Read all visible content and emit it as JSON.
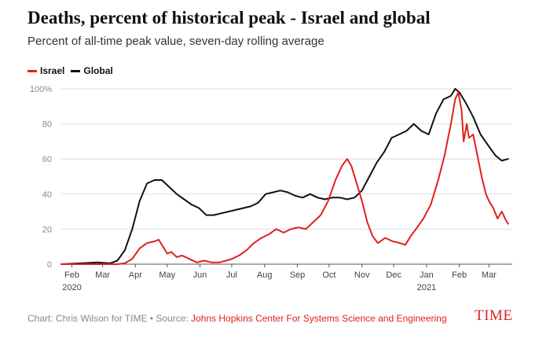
{
  "title": "Deaths, percent of historical peak - Israel and global",
  "subtitle": "Percent of all-time peak value, seven-day rolling average",
  "footer": {
    "credit": "Chart: Chris Wilson for TIME • Source: ",
    "source": "Johns Hopkins Center For Systems Science and Engineering"
  },
  "logo": "TIME",
  "colors": {
    "israel": "#e02020",
    "global": "#111111",
    "grid": "#dddddd",
    "axis_text": "#888888"
  },
  "chart_data": {
    "type": "line",
    "title": "Deaths, percent of historical peak - Israel and global",
    "subtitle": "Percent of all-time peak value, seven-day rolling average",
    "xlabel": "",
    "ylabel": "",
    "ylim": [
      0,
      100
    ],
    "xlim": [
      "2020-01-22",
      "2021-03-20"
    ],
    "grid": true,
    "legend": "top-left",
    "y_ticks": [
      {
        "value": 0,
        "label": "0"
      },
      {
        "value": 20,
        "label": "20"
      },
      {
        "value": 40,
        "label": "40"
      },
      {
        "value": 60,
        "label": "60"
      },
      {
        "value": 80,
        "label": "80"
      },
      {
        "value": 100,
        "label": "100%"
      }
    ],
    "x_ticks": [
      {
        "date": "2020-02-01",
        "label": "Feb",
        "year": "2020"
      },
      {
        "date": "2020-03-01",
        "label": "Mar",
        "year": ""
      },
      {
        "date": "2020-04-01",
        "label": "Apr",
        "year": ""
      },
      {
        "date": "2020-05-01",
        "label": "May",
        "year": ""
      },
      {
        "date": "2020-06-01",
        "label": "Jun",
        "year": ""
      },
      {
        "date": "2020-07-01",
        "label": "Jul",
        "year": ""
      },
      {
        "date": "2020-08-01",
        "label": "Aug",
        "year": ""
      },
      {
        "date": "2020-09-01",
        "label": "Sep",
        "year": ""
      },
      {
        "date": "2020-10-01",
        "label": "Oct",
        "year": ""
      },
      {
        "date": "2020-11-01",
        "label": "Nov",
        "year": ""
      },
      {
        "date": "2020-12-01",
        "label": "Dec",
        "year": ""
      },
      {
        "date": "2021-01-01",
        "label": "Jan",
        "year": "2021"
      },
      {
        "date": "2021-02-01",
        "label": "Feb",
        "year": ""
      },
      {
        "date": "2021-03-01",
        "label": "Mar",
        "year": ""
      }
    ],
    "series": [
      {
        "name": "Israel",
        "color": "#e02020",
        "points": [
          [
            "2020-01-22",
            0
          ],
          [
            "2020-03-15",
            0
          ],
          [
            "2020-03-22",
            0.5
          ],
          [
            "2020-03-29",
            3
          ],
          [
            "2020-04-05",
            9
          ],
          [
            "2020-04-12",
            12
          ],
          [
            "2020-04-19",
            13
          ],
          [
            "2020-04-23",
            14
          ],
          [
            "2020-04-27",
            10
          ],
          [
            "2020-05-01",
            6
          ],
          [
            "2020-05-05",
            7
          ],
          [
            "2020-05-10",
            4
          ],
          [
            "2020-05-15",
            5
          ],
          [
            "2020-05-22",
            3
          ],
          [
            "2020-05-29",
            1
          ],
          [
            "2020-06-05",
            2
          ],
          [
            "2020-06-12",
            1
          ],
          [
            "2020-06-19",
            1
          ],
          [
            "2020-06-26",
            2
          ],
          [
            "2020-07-01",
            3
          ],
          [
            "2020-07-08",
            5
          ],
          [
            "2020-07-15",
            8
          ],
          [
            "2020-07-22",
            12
          ],
          [
            "2020-07-29",
            15
          ],
          [
            "2020-08-05",
            17
          ],
          [
            "2020-08-12",
            20
          ],
          [
            "2020-08-19",
            18
          ],
          [
            "2020-08-26",
            20
          ],
          [
            "2020-09-02",
            21
          ],
          [
            "2020-09-09",
            20
          ],
          [
            "2020-09-16",
            24
          ],
          [
            "2020-09-23",
            28
          ],
          [
            "2020-09-30",
            36
          ],
          [
            "2020-10-07",
            48
          ],
          [
            "2020-10-13",
            56
          ],
          [
            "2020-10-18",
            60
          ],
          [
            "2020-10-22",
            56
          ],
          [
            "2020-10-27",
            46
          ],
          [
            "2020-11-01",
            36
          ],
          [
            "2020-11-06",
            24
          ],
          [
            "2020-11-11",
            16
          ],
          [
            "2020-11-16",
            12
          ],
          [
            "2020-11-23",
            15
          ],
          [
            "2020-11-30",
            13
          ],
          [
            "2020-12-07",
            12
          ],
          [
            "2020-12-12",
            11
          ],
          [
            "2020-12-17",
            16
          ],
          [
            "2020-12-22",
            20
          ],
          [
            "2020-12-29",
            26
          ],
          [
            "2021-01-05",
            34
          ],
          [
            "2021-01-12",
            48
          ],
          [
            "2021-01-18",
            62
          ],
          [
            "2021-01-24",
            80
          ],
          [
            "2021-01-28",
            94
          ],
          [
            "2021-01-31",
            98
          ],
          [
            "2021-02-03",
            88
          ],
          [
            "2021-02-05",
            70
          ],
          [
            "2021-02-08",
            80
          ],
          [
            "2021-02-10",
            72
          ],
          [
            "2021-02-14",
            74
          ],
          [
            "2021-02-18",
            62
          ],
          [
            "2021-02-22",
            50
          ],
          [
            "2021-02-26",
            40
          ],
          [
            "2021-03-01",
            36
          ],
          [
            "2021-03-05",
            32
          ],
          [
            "2021-03-09",
            26
          ],
          [
            "2021-03-13",
            30
          ],
          [
            "2021-03-17",
            25
          ],
          [
            "2021-03-19",
            23
          ]
        ]
      },
      {
        "name": "Global",
        "color": "#111111",
        "points": [
          [
            "2020-01-22",
            0
          ],
          [
            "2020-02-10",
            0.5
          ],
          [
            "2020-02-25",
            1
          ],
          [
            "2020-03-08",
            0.5
          ],
          [
            "2020-03-15",
            2
          ],
          [
            "2020-03-22",
            8
          ],
          [
            "2020-03-29",
            20
          ],
          [
            "2020-04-05",
            36
          ],
          [
            "2020-04-12",
            46
          ],
          [
            "2020-04-19",
            48
          ],
          [
            "2020-04-26",
            48
          ],
          [
            "2020-05-03",
            44
          ],
          [
            "2020-05-10",
            40
          ],
          [
            "2020-05-17",
            37
          ],
          [
            "2020-05-24",
            34
          ],
          [
            "2020-05-31",
            32
          ],
          [
            "2020-06-07",
            28
          ],
          [
            "2020-06-14",
            28
          ],
          [
            "2020-06-21",
            29
          ],
          [
            "2020-06-28",
            30
          ],
          [
            "2020-07-05",
            31
          ],
          [
            "2020-07-12",
            32
          ],
          [
            "2020-07-19",
            33
          ],
          [
            "2020-07-26",
            35
          ],
          [
            "2020-08-02",
            40
          ],
          [
            "2020-08-09",
            41
          ],
          [
            "2020-08-16",
            42
          ],
          [
            "2020-08-23",
            41
          ],
          [
            "2020-08-30",
            39
          ],
          [
            "2020-09-06",
            38
          ],
          [
            "2020-09-13",
            40
          ],
          [
            "2020-09-20",
            38
          ],
          [
            "2020-09-27",
            37
          ],
          [
            "2020-10-04",
            38
          ],
          [
            "2020-10-11",
            38
          ],
          [
            "2020-10-18",
            37
          ],
          [
            "2020-10-25",
            38
          ],
          [
            "2020-11-01",
            42
          ],
          [
            "2020-11-08",
            50
          ],
          [
            "2020-11-15",
            58
          ],
          [
            "2020-11-22",
            64
          ],
          [
            "2020-11-29",
            72
          ],
          [
            "2020-12-06",
            74
          ],
          [
            "2020-12-13",
            76
          ],
          [
            "2020-12-20",
            80
          ],
          [
            "2020-12-27",
            76
          ],
          [
            "2021-01-03",
            74
          ],
          [
            "2021-01-10",
            86
          ],
          [
            "2021-01-17",
            94
          ],
          [
            "2021-01-24",
            96
          ],
          [
            "2021-01-28",
            100
          ],
          [
            "2021-02-01",
            98
          ],
          [
            "2021-02-07",
            92
          ],
          [
            "2021-02-14",
            84
          ],
          [
            "2021-02-21",
            74
          ],
          [
            "2021-02-28",
            68
          ],
          [
            "2021-03-07",
            62
          ],
          [
            "2021-03-13",
            59
          ],
          [
            "2021-03-19",
            60
          ]
        ]
      }
    ]
  }
}
